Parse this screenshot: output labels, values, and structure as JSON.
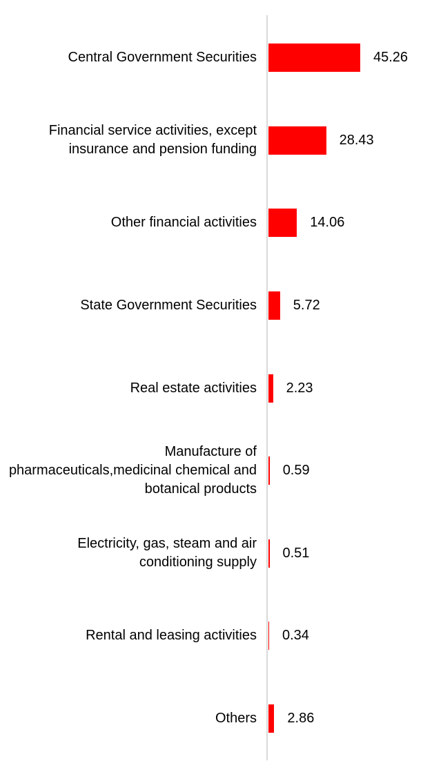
{
  "chart_data": {
    "type": "bar",
    "orientation": "horizontal",
    "title": "",
    "categories": [
      "Central Government Securities",
      "Financial service activities, except insurance and pension funding",
      "Other financial activities",
      "State Government Securities",
      "Real estate activities",
      "Manufacture of pharmaceuticals,medicinal chemical and botanical products",
      "Electricity, gas, steam and air conditioning supply",
      "Rental and leasing activities",
      "Others"
    ],
    "values": [
      45.26,
      28.43,
      14.06,
      5.72,
      2.23,
      0.59,
      0.51,
      0.34,
      2.86
    ],
    "data_labels": [
      "45.26",
      "28.43",
      "14.06",
      "5.72",
      "2.23",
      "0.59",
      "0.51",
      "0.34",
      "2.86"
    ],
    "xlim": [
      0,
      80
    ],
    "grid": false,
    "legend": false,
    "data_labels_visible": true,
    "bar_color": "#ff0000",
    "axis_line_color": "#d9d9d9",
    "text_color": "#000000",
    "background_color": "#ffffff"
  }
}
